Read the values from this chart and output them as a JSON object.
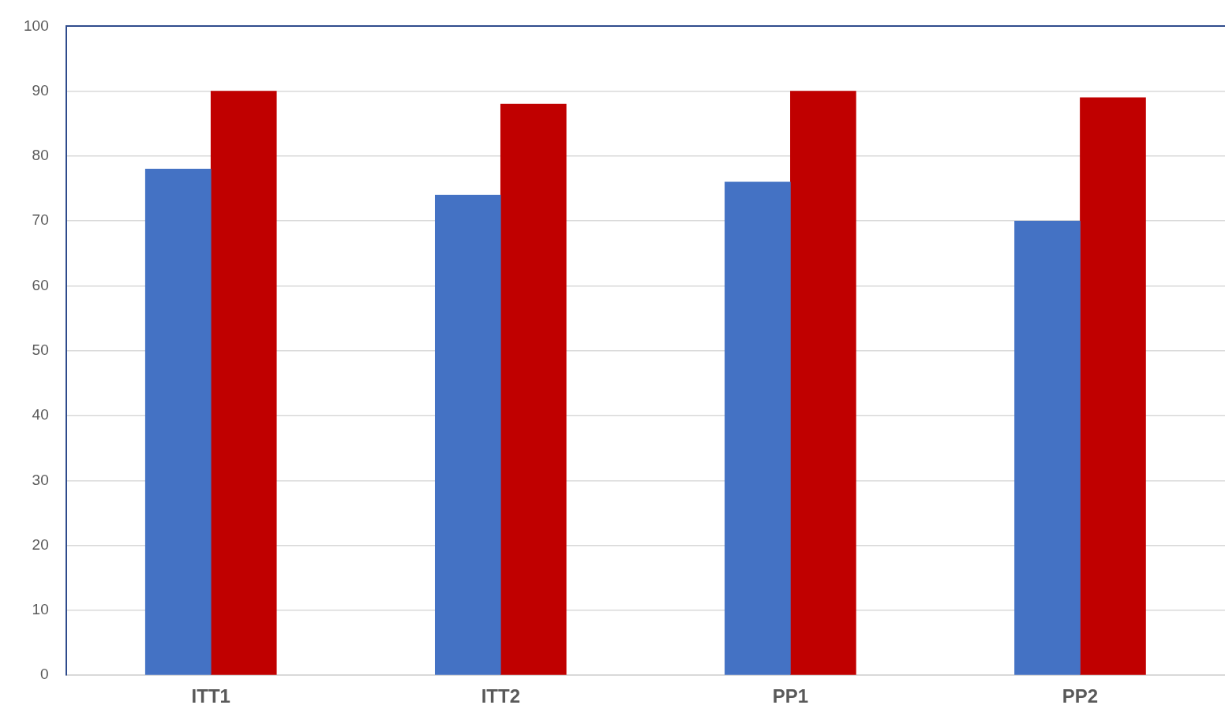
{
  "chart_data": {
    "type": "bar",
    "categories": [
      "ITT1",
      "ITT2",
      "PP1",
      "PP2"
    ],
    "series": [
      {
        "color": "#4472c4",
        "values": [
          78,
          74,
          76,
          70
        ]
      },
      {
        "color": "#c00000",
        "values": [
          90,
          88,
          90,
          89
        ]
      }
    ],
    "ylim": [
      0,
      100
    ],
    "yticks": [
      0,
      10,
      20,
      30,
      40,
      50,
      60,
      70,
      80,
      90,
      100
    ],
    "grid": "y",
    "legend": false
  }
}
